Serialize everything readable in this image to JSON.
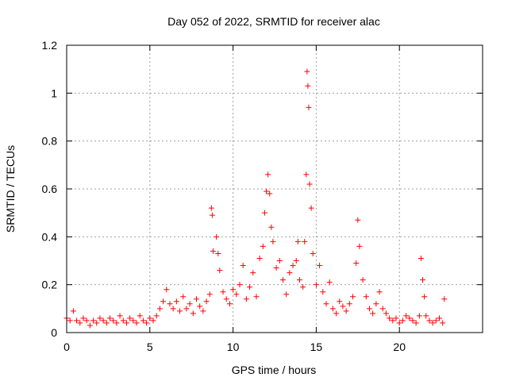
{
  "chart_data": {
    "type": "scatter",
    "title": "Day 052 of 2022, SRMTID for receiver alac",
    "xlabel": "GPS time / hours",
    "ylabel": "SRMTID / TECUs",
    "xlim": [
      0,
      25
    ],
    "ylim": [
      0,
      1.2
    ],
    "xticks": [
      0,
      5,
      10,
      15,
      20
    ],
    "xtick_labels": [
      "0",
      "5",
      "10",
      "15",
      "20"
    ],
    "yticks": [
      0,
      0.2,
      0.4,
      0.6,
      0.8,
      1,
      1.2
    ],
    "ytick_labels": [
      "0",
      "0.2",
      "0.4",
      "0.6",
      "0.8",
      "1",
      "1.2"
    ],
    "grid": true,
    "marker": "+",
    "marker_color": "#ff0000",
    "series": [
      {
        "name": "SRMTID",
        "x": [
          0.0,
          0.2,
          0.4,
          0.6,
          0.8,
          1.0,
          1.2,
          1.4,
          1.6,
          1.8,
          2.0,
          2.2,
          2.4,
          2.6,
          2.8,
          3.0,
          3.2,
          3.4,
          3.6,
          3.8,
          4.0,
          4.2,
          4.4,
          4.6,
          4.8,
          5.0,
          5.2,
          5.4,
          5.6,
          5.8,
          6.0,
          6.2,
          6.4,
          6.6,
          6.8,
          7.0,
          7.2,
          7.4,
          7.6,
          7.8,
          8.0,
          8.2,
          8.4,
          8.6,
          8.7,
          8.75,
          8.8,
          9.0,
          9.1,
          9.2,
          9.4,
          9.6,
          9.8,
          10.0,
          10.2,
          10.4,
          10.6,
          10.8,
          11.0,
          11.2,
          11.4,
          11.6,
          11.8,
          11.9,
          12.0,
          12.1,
          12.2,
          12.3,
          12.4,
          12.6,
          12.8,
          13.0,
          13.2,
          13.4,
          13.6,
          13.8,
          13.9,
          14.0,
          14.2,
          14.3,
          14.4,
          14.45,
          14.5,
          14.55,
          14.6,
          14.7,
          14.8,
          15.0,
          15.2,
          15.4,
          15.6,
          15.8,
          16.0,
          16.2,
          16.4,
          16.6,
          16.8,
          17.0,
          17.2,
          17.4,
          17.5,
          17.6,
          17.8,
          18.0,
          18.2,
          18.4,
          18.6,
          18.8,
          19.0,
          19.2,
          19.4,
          19.6,
          19.8,
          20.0,
          20.2,
          20.4,
          20.6,
          20.8,
          21.0,
          21.2,
          21.3,
          21.4,
          21.5,
          21.6,
          21.8,
          22.0,
          22.2,
          22.4,
          22.6,
          22.7
        ],
        "y": [
          0.06,
          0.05,
          0.09,
          0.05,
          0.04,
          0.06,
          0.05,
          0.03,
          0.05,
          0.04,
          0.06,
          0.05,
          0.04,
          0.06,
          0.05,
          0.04,
          0.07,
          0.05,
          0.04,
          0.06,
          0.05,
          0.04,
          0.07,
          0.05,
          0.04,
          0.06,
          0.05,
          0.07,
          0.1,
          0.13,
          0.18,
          0.12,
          0.1,
          0.13,
          0.09,
          0.15,
          0.1,
          0.12,
          0.08,
          0.14,
          0.11,
          0.09,
          0.13,
          0.16,
          0.52,
          0.49,
          0.34,
          0.4,
          0.33,
          0.26,
          0.17,
          0.14,
          0.12,
          0.18,
          0.16,
          0.2,
          0.28,
          0.14,
          0.19,
          0.25,
          0.15,
          0.31,
          0.36,
          0.5,
          0.59,
          0.66,
          0.58,
          0.44,
          0.38,
          0.27,
          0.3,
          0.22,
          0.16,
          0.25,
          0.28,
          0.3,
          0.38,
          0.22,
          0.19,
          0.38,
          0.66,
          1.09,
          1.03,
          0.94,
          0.62,
          0.52,
          0.33,
          0.2,
          0.28,
          0.17,
          0.12,
          0.21,
          0.1,
          0.08,
          0.13,
          0.11,
          0.09,
          0.12,
          0.15,
          0.29,
          0.47,
          0.36,
          0.22,
          0.15,
          0.1,
          0.08,
          0.12,
          0.17,
          0.1,
          0.08,
          0.06,
          0.05,
          0.06,
          0.04,
          0.05,
          0.07,
          0.06,
          0.05,
          0.04,
          0.07,
          0.31,
          0.22,
          0.15,
          0.07,
          0.05,
          0.04,
          0.05,
          0.06,
          0.04,
          0.14
        ]
      }
    ]
  }
}
